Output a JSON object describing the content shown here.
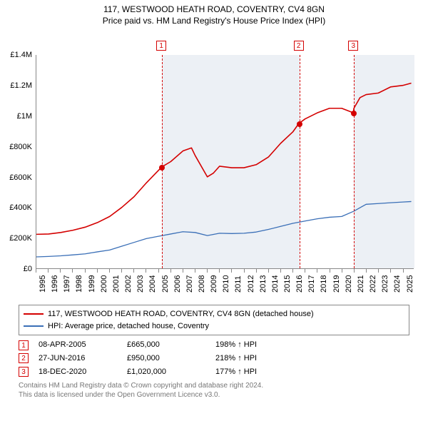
{
  "title": {
    "line1": "117, WESTWOOD HEATH ROAD, COVENTRY, CV4 8GN",
    "line2": "Price paid vs. HM Land Registry's House Price Index (HPI)"
  },
  "chart": {
    "type": "line",
    "background_color": "#ffffff",
    "shaded_band_color": "rgba(180,195,215,0.25)",
    "x_axis": {
      "min_year": 1995,
      "max_year": 2025.9,
      "ticks": [
        1995,
        1996,
        1997,
        1998,
        1999,
        2000,
        2001,
        2002,
        2003,
        2004,
        2005,
        2006,
        2007,
        2008,
        2009,
        2010,
        2011,
        2012,
        2013,
        2014,
        2015,
        2016,
        2017,
        2018,
        2019,
        2020,
        2021,
        2022,
        2023,
        2024,
        2025
      ]
    },
    "y_axis": {
      "min": 0,
      "max": 1400000,
      "ticks": [
        {
          "v": 0,
          "label": "£0"
        },
        {
          "v": 200000,
          "label": "£200K"
        },
        {
          "v": 400000,
          "label": "£400K"
        },
        {
          "v": 600000,
          "label": "£600K"
        },
        {
          "v": 800000,
          "label": "£800K"
        },
        {
          "v": 1000000,
          "label": "£1M"
        },
        {
          "v": 1200000,
          "label": "£1.2M"
        },
        {
          "v": 1400000,
          "label": "£1.4M"
        }
      ]
    },
    "shaded_ranges": [
      {
        "from": 2005.27,
        "to": 2016.49
      },
      {
        "from": 2020.96,
        "to": 2025.9
      }
    ],
    "series": [
      {
        "name": "property",
        "label": "117, WESTWOOD HEATH ROAD, COVENTRY, CV4 8GN (detached house)",
        "color": "#d40000",
        "line_width": 1.6,
        "data": [
          [
            1995,
            223000
          ],
          [
            1996,
            225000
          ],
          [
            1997,
            235000
          ],
          [
            1998,
            250000
          ],
          [
            1999,
            270000
          ],
          [
            2000,
            300000
          ],
          [
            2001,
            340000
          ],
          [
            2002,
            400000
          ],
          [
            2003,
            470000
          ],
          [
            2004,
            560000
          ],
          [
            2005.27,
            665000
          ],
          [
            2006,
            700000
          ],
          [
            2007,
            770000
          ],
          [
            2007.7,
            790000
          ],
          [
            2008,
            740000
          ],
          [
            2009,
            600000
          ],
          [
            2009.5,
            625000
          ],
          [
            2010,
            670000
          ],
          [
            2011,
            660000
          ],
          [
            2012,
            660000
          ],
          [
            2013,
            680000
          ],
          [
            2014,
            730000
          ],
          [
            2015,
            820000
          ],
          [
            2016,
            895000
          ],
          [
            2016.49,
            950000
          ],
          [
            2017,
            980000
          ],
          [
            2018,
            1020000
          ],
          [
            2019,
            1050000
          ],
          [
            2020,
            1050000
          ],
          [
            2020.96,
            1020000
          ],
          [
            2021,
            1050000
          ],
          [
            2021.5,
            1120000
          ],
          [
            2022,
            1140000
          ],
          [
            2023,
            1150000
          ],
          [
            2024,
            1190000
          ],
          [
            2025,
            1200000
          ],
          [
            2025.7,
            1215000
          ]
        ]
      },
      {
        "name": "hpi",
        "label": "HPI: Average price, detached house, Coventry",
        "color": "#3a6fb7",
        "line_width": 1.3,
        "data": [
          [
            1995,
            75000
          ],
          [
            1996,
            78000
          ],
          [
            1997,
            82000
          ],
          [
            1998,
            88000
          ],
          [
            1999,
            95000
          ],
          [
            2000,
            108000
          ],
          [
            2001,
            120000
          ],
          [
            2002,
            145000
          ],
          [
            2003,
            170000
          ],
          [
            2004,
            195000
          ],
          [
            2005,
            210000
          ],
          [
            2006,
            225000
          ],
          [
            2007,
            240000
          ],
          [
            2008,
            235000
          ],
          [
            2009,
            215000
          ],
          [
            2010,
            230000
          ],
          [
            2011,
            228000
          ],
          [
            2012,
            230000
          ],
          [
            2013,
            238000
          ],
          [
            2014,
            255000
          ],
          [
            2015,
            275000
          ],
          [
            2016,
            295000
          ],
          [
            2017,
            310000
          ],
          [
            2018,
            325000
          ],
          [
            2019,
            335000
          ],
          [
            2020,
            340000
          ],
          [
            2021,
            375000
          ],
          [
            2022,
            420000
          ],
          [
            2023,
            425000
          ],
          [
            2024,
            430000
          ],
          [
            2025,
            435000
          ],
          [
            2025.7,
            438000
          ]
        ]
      }
    ],
    "sale_markers": [
      {
        "n": "1",
        "year": 2005.27,
        "price": 665000
      },
      {
        "n": "2",
        "year": 2016.49,
        "price": 950000
      },
      {
        "n": "3",
        "year": 2020.96,
        "price": 1020000
      }
    ],
    "marker_color": "#d40000",
    "dash_color": "#d40000"
  },
  "legend": {
    "items": [
      {
        "color": "#d40000",
        "label": "117, WESTWOOD HEATH ROAD, COVENTRY, CV4 8GN (detached house)"
      },
      {
        "color": "#3a6fb7",
        "label": "HPI: Average price, detached house, Coventry"
      }
    ]
  },
  "sales_table": {
    "rows": [
      {
        "n": "1",
        "date": "08-APR-2005",
        "price": "£665,000",
        "pct": "198% ↑ HPI"
      },
      {
        "n": "2",
        "date": "27-JUN-2016",
        "price": "£950,000",
        "pct": "218% ↑ HPI"
      },
      {
        "n": "3",
        "date": "18-DEC-2020",
        "price": "£1,020,000",
        "pct": "177% ↑ HPI"
      }
    ],
    "marker_color": "#d40000"
  },
  "footer": {
    "line1": "Contains HM Land Registry data © Crown copyright and database right 2024.",
    "line2": "This data is licensed under the Open Government Licence v3.0."
  }
}
